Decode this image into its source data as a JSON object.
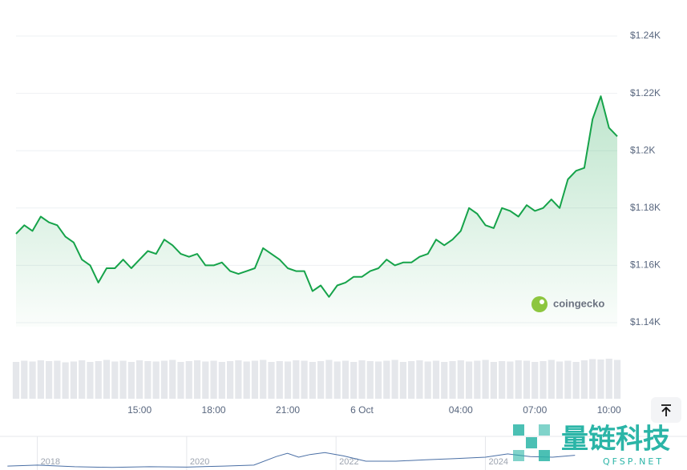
{
  "chart_data": {
    "type": "line",
    "categories": [
      null,
      null,
      null,
      null,
      null,
      null,
      null,
      null,
      null,
      null,
      null,
      null,
      null,
      null,
      null,
      "15:00",
      null,
      null,
      null,
      null,
      null,
      null,
      null,
      null,
      "18:00",
      null,
      null,
      null,
      null,
      null,
      null,
      null,
      null,
      "21:00",
      null,
      null,
      null,
      null,
      null,
      null,
      null,
      null,
      "6 Oct",
      null,
      null,
      null,
      null,
      null,
      null,
      null,
      null,
      null,
      null,
      null,
      "04:00",
      null,
      null,
      null,
      null,
      null,
      null,
      null,
      null,
      "07:00",
      null,
      null,
      null,
      null,
      null,
      null,
      null,
      null,
      "10:00",
      null
    ],
    "values": [
      1171,
      1174,
      1172,
      1177,
      1175,
      1174,
      1170,
      1168,
      1162,
      1160,
      1154,
      1159,
      1159,
      1162,
      1159,
      1162,
      1165,
      1164,
      1169,
      1167,
      1164,
      1163,
      1164,
      1160,
      1160,
      1161,
      1158,
      1157,
      1158,
      1159,
      1166,
      1164,
      1162,
      1159,
      1158,
      1158,
      1151,
      1153,
      1149,
      1153,
      1154,
      1156,
      1156,
      1158,
      1159,
      1162,
      1160,
      1161,
      1161,
      1163,
      1164,
      1169,
      1167,
      1169,
      1172,
      1180,
      1178,
      1174,
      1173,
      1180,
      1179,
      1177,
      1181,
      1179,
      1180,
      1183,
      1180,
      1190,
      1193,
      1194,
      1211,
      1219,
      1208,
      1205
    ],
    "color": "#16a34a",
    "volume": [
      92,
      95,
      93,
      96,
      94,
      95,
      91,
      93,
      96,
      92,
      94,
      97,
      93,
      95,
      92,
      96,
      94,
      93,
      95,
      97,
      92,
      94,
      96,
      93,
      95,
      92,
      94,
      96,
      93,
      95,
      97,
      92,
      94,
      93,
      96,
      95,
      92,
      94,
      97,
      93,
      95,
      92,
      96,
      94,
      93,
      95,
      97,
      92,
      94,
      96,
      93,
      95,
      92,
      94,
      96,
      93,
      95,
      97,
      92,
      94,
      93,
      96,
      95,
      92,
      94,
      97,
      93,
      95,
      92,
      96,
      99,
      98,
      100,
      97
    ],
    "ylim": [
      1140,
      1240
    ],
    "yticks": [
      {
        "value": 1140,
        "label": "$1.14K"
      },
      {
        "value": 1160,
        "label": "$1.16K"
      },
      {
        "value": 1180,
        "label": "$1.18K"
      },
      {
        "value": 1200,
        "label": "$1.2K"
      },
      {
        "value": 1220,
        "label": "$1.22K"
      },
      {
        "value": 1240,
        "label": "$1.24K"
      }
    ],
    "grid": true,
    "navigator": {
      "type": "line",
      "x": [
        2017.6,
        2018.0,
        2018.5,
        2019.0,
        2019.5,
        2020.0,
        2020.5,
        2020.9,
        2021.2,
        2021.35,
        2021.5,
        2021.65,
        2021.85,
        2022.1,
        2022.4,
        2022.8,
        2023.2,
        2023.6,
        2024.0,
        2024.3,
        2024.6,
        2024.9,
        2025.2
      ],
      "values": [
        350,
        500,
        250,
        150,
        250,
        200,
        350,
        500,
        1800,
        2300,
        1700,
        2100,
        2400,
        1900,
        1100,
        1100,
        1300,
        1500,
        1700,
        2200,
        1800,
        1700,
        2000
      ],
      "xlim": [
        2017.5,
        2026.7
      ],
      "ylim": [
        0,
        4500
      ],
      "xticks": [
        2018,
        2020,
        2022,
        2024
      ],
      "color": "#4a6fa5"
    }
  },
  "logo": "coingecko",
  "watermark": {
    "title": "量链科技",
    "subtitle": "QFSP.NET"
  }
}
